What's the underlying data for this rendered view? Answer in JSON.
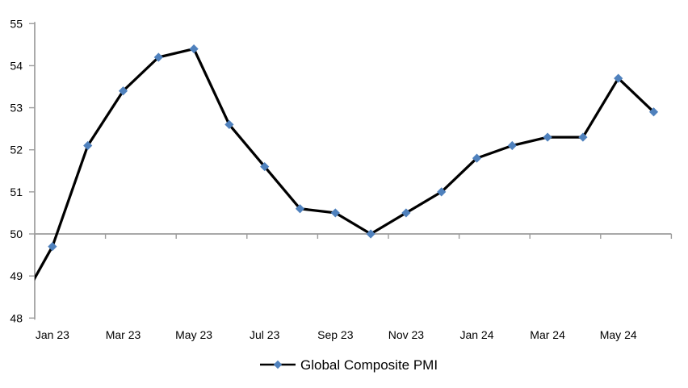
{
  "chart_data": {
    "type": "line",
    "title": "",
    "legend": {
      "label": "Global Composite PMI",
      "position": "bottom-center",
      "marker": "diamond"
    },
    "categories": [
      "Dec 22",
      "Jan 23",
      "Feb 23",
      "Mar 23",
      "Apr 23",
      "May 23",
      "Jun 23",
      "Jul 23",
      "Aug 23",
      "Sep 23",
      "Oct 23",
      "Nov 23",
      "Dec 23",
      "Jan 24",
      "Feb 24",
      "Mar 24",
      "Apr 24",
      "May 24",
      "Jun 24"
    ],
    "series": [
      {
        "name": "Global Composite PMI",
        "values": [
          48.2,
          49.7,
          52.1,
          53.4,
          54.2,
          54.4,
          52.6,
          51.6,
          50.6,
          50.5,
          50.0,
          50.5,
          51.0,
          51.8,
          52.1,
          52.3,
          52.3,
          53.7,
          52.9
        ]
      }
    ],
    "x_tick_labels": [
      "Jan 23",
      "Mar 23",
      "May 23",
      "Jul 23",
      "Sep 23",
      "Nov 23",
      "Jan 24",
      "Mar 24",
      "May 24"
    ],
    "y_ticks": [
      48,
      49,
      50,
      51,
      52,
      53,
      54,
      55
    ],
    "ylim": [
      48,
      55
    ],
    "x_axis_crosses_at": 50,
    "x_tick_interval_months": 2,
    "first_point_note": "Dec 22 point lies left of the y-axis; its connecting segment is clipped at the plot edge and its marker is not visible",
    "grid": false,
    "colors": {
      "line": "#000000",
      "marker": "#4F81BD",
      "axis": "#9C9C9C",
      "text": "#000000",
      "background": "#FFFFFF"
    }
  }
}
